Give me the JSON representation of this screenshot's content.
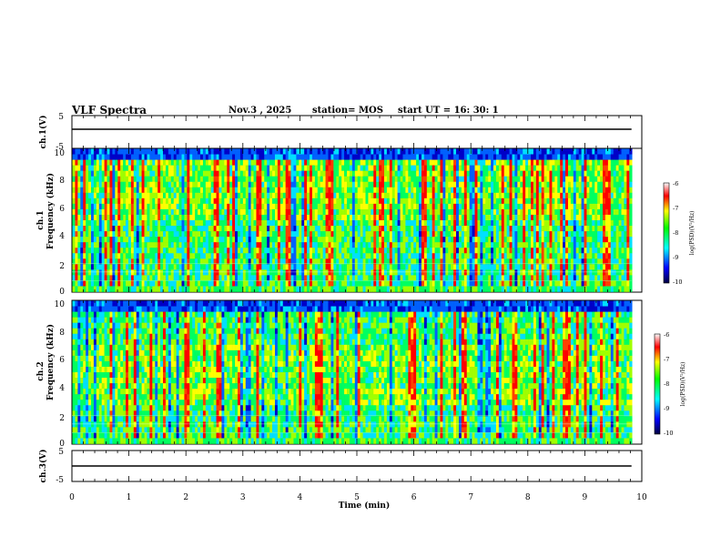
{
  "header": {
    "title": "VLF Spectra",
    "date": "Nov.3  , 2025",
    "station": "station= MOS",
    "start": "start  UT  =   16: 30: 1"
  },
  "chart_data": [
    {
      "type": "line",
      "name": "ch1-waveform",
      "ylabel": "ch.1(V)",
      "ylim": [
        -5,
        5
      ],
      "yticks": [
        "5",
        "-5"
      ],
      "level": 0
    },
    {
      "type": "heatmap",
      "name": "ch1-spectrogram",
      "ylabel": "ch.1",
      "ylabel2": "Frequency (kHz)",
      "ylim": [
        0,
        10
      ],
      "yticks": [
        "0",
        "2",
        "4",
        "6",
        "8",
        "10"
      ],
      "colorbar": {
        "label": "log(PSD)(V²/Hz)",
        "range": [
          -10,
          -6
        ],
        "ticks": [
          "-6",
          "-7",
          "-8",
          "-9",
          "-10"
        ]
      }
    },
    {
      "type": "heatmap",
      "name": "ch2-spectrogram",
      "ylabel": "ch.2",
      "ylabel2": "Frequency (kHz)",
      "ylim": [
        0,
        10
      ],
      "yticks": [
        "0",
        "2",
        "4",
        "6",
        "8",
        "10"
      ],
      "colorbar": {
        "label": "log(PSD)(V²/Hz)",
        "range": [
          -10,
          -6
        ],
        "ticks": [
          "-6",
          "-7",
          "-8",
          "-9",
          "-10"
        ]
      }
    },
    {
      "type": "line",
      "name": "ch3-waveform",
      "ylabel": "ch.3(V)",
      "ylim": [
        -5,
        5
      ],
      "yticks": [
        "5",
        "-5"
      ],
      "level": 0
    }
  ],
  "xaxis": {
    "label": "Time  (min)",
    "range": [
      0,
      10
    ],
    "ticks": [
      "0",
      "1",
      "2",
      "3",
      "4",
      "5",
      "6",
      "7",
      "8",
      "9",
      "10"
    ],
    "data_end": 9.82
  }
}
